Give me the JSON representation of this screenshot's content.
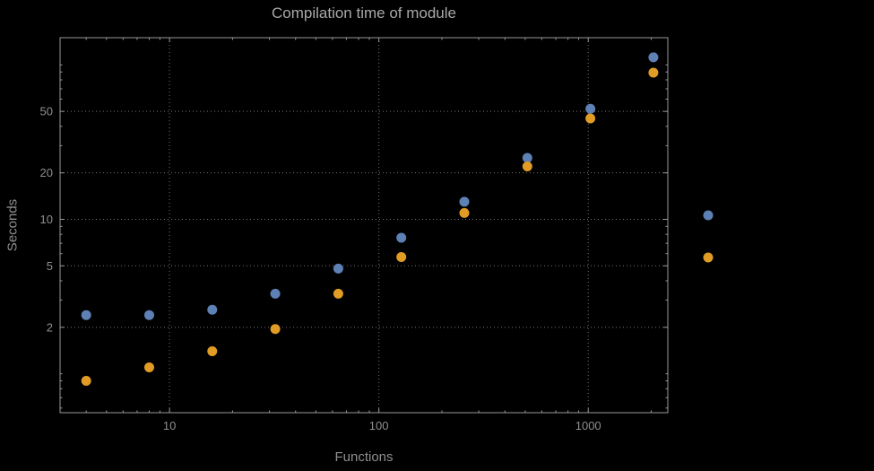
{
  "chart_data": {
    "type": "scatter",
    "title": "Compilation time of module",
    "xlabel": "Functions",
    "ylabel": "Seconds",
    "x_scale": "log",
    "y_scale": "log",
    "grid": "dotted",
    "x": [
      4,
      8,
      16,
      32,
      64,
      128,
      256,
      512,
      1024,
      2048
    ],
    "series": [
      {
        "name": "series-blue",
        "color": "#5e81b5",
        "values": [
          2.4,
          2.4,
          2.6,
          3.3,
          4.8,
          7.6,
          13,
          25,
          52,
          112
        ]
      },
      {
        "name": "series-orange",
        "color": "#e09c24",
        "values": [
          0.9,
          1.1,
          1.4,
          1.95,
          3.3,
          5.7,
          11,
          22,
          45,
          89
        ]
      }
    ],
    "x_ticks": [
      10,
      100,
      1000
    ],
    "y_ticks": [
      2,
      5,
      10,
      20,
      50
    ],
    "xlim": [
      3.0,
      2400
    ],
    "ylim": [
      0.56,
      150
    ],
    "legend_markers": [
      {
        "color": "#5e81b5"
      },
      {
        "color": "#e09c24"
      }
    ],
    "colors": {
      "background": "#000000",
      "frame": "#999999",
      "grid": "#757575",
      "tick_text": "#8f8f8f",
      "title_text": "#a8a8a8",
      "axis_label_text": "#8f8f8f"
    }
  }
}
